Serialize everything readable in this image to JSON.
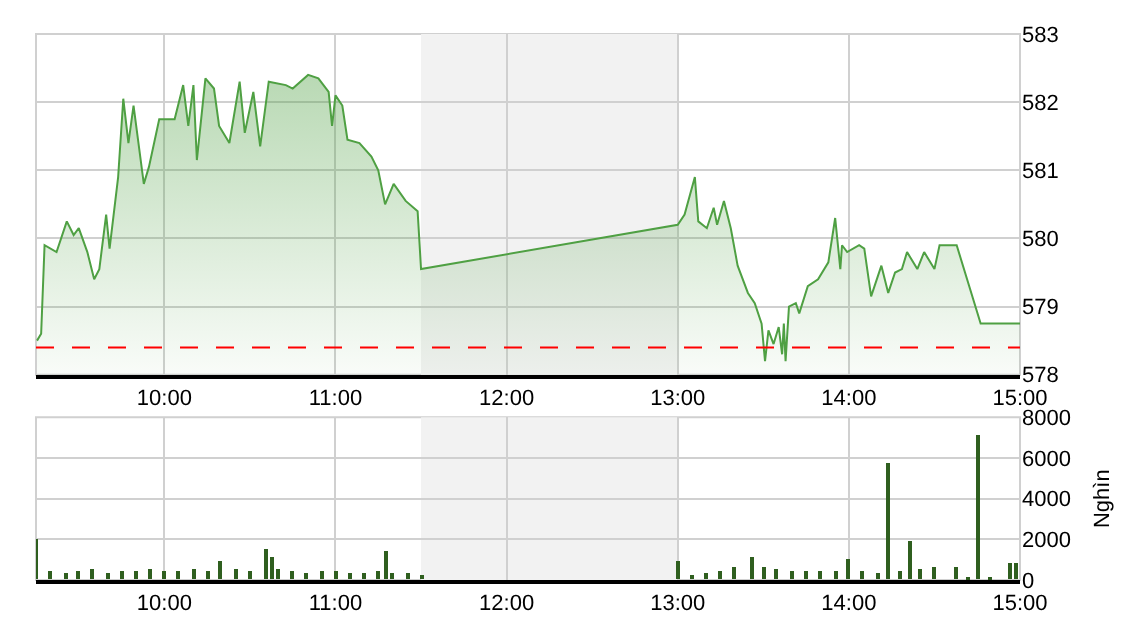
{
  "chart_data": [
    {
      "type": "area",
      "color": "#4fa043",
      "x": [
        9.256,
        9.28,
        9.3,
        9.37,
        9.43,
        9.47,
        9.5,
        9.55,
        9.59,
        9.62,
        9.66,
        9.68,
        9.73,
        9.76,
        9.79,
        9.82,
        9.88,
        9.91,
        9.97,
        10.06,
        10.11,
        10.14,
        10.17,
        10.19,
        10.24,
        10.29,
        10.32,
        10.38,
        10.44,
        10.47,
        10.52,
        10.56,
        10.61,
        10.71,
        10.75,
        10.84,
        10.9,
        10.96,
        10.98,
        11.0,
        11.04,
        11.07,
        11.14,
        11.21,
        11.25,
        11.29,
        11.34,
        11.41,
        11.48,
        11.5,
        13.0,
        13.04,
        13.1,
        13.12,
        13.17,
        13.21,
        13.23,
        13.27,
        13.31,
        13.35,
        13.41,
        13.45,
        13.49,
        13.51,
        13.53,
        13.56,
        13.59,
        13.61,
        13.62,
        13.63,
        13.65,
        13.69,
        13.71,
        13.76,
        13.82,
        13.88,
        13.92,
        13.95,
        13.96,
        13.99,
        14.06,
        14.09,
        14.13,
        14.19,
        14.23,
        14.27,
        14.31,
        14.34,
        14.4,
        14.44,
        14.5,
        14.53,
        14.63,
        14.77,
        15.0
      ],
      "values": [
        578.5,
        578.6,
        579.9,
        579.8,
        580.25,
        580.05,
        580.15,
        579.8,
        579.4,
        579.55,
        580.35,
        579.85,
        580.9,
        582.05,
        581.4,
        581.95,
        580.8,
        581.05,
        581.75,
        581.75,
        582.25,
        581.65,
        582.25,
        581.15,
        582.35,
        582.2,
        581.65,
        581.4,
        582.3,
        581.55,
        582.15,
        581.35,
        582.3,
        582.25,
        582.2,
        582.4,
        582.35,
        582.15,
        581.65,
        582.1,
        581.95,
        581.45,
        581.4,
        581.2,
        581.0,
        580.5,
        580.8,
        580.55,
        580.4,
        579.55,
        580.2,
        580.35,
        580.9,
        580.25,
        580.15,
        580.45,
        580.2,
        580.55,
        580.15,
        579.6,
        579.2,
        579.05,
        578.75,
        578.2,
        578.65,
        578.45,
        578.7,
        578.3,
        578.75,
        578.2,
        579.0,
        579.05,
        578.9,
        579.3,
        579.4,
        579.65,
        580.3,
        579.55,
        579.9,
        579.8,
        579.9,
        579.85,
        579.15,
        579.6,
        579.2,
        579.5,
        579.55,
        579.8,
        579.55,
        579.8,
        579.55,
        579.9,
        579.9,
        578.75,
        578.75
      ],
      "xlim": [
        9.25,
        15
      ],
      "ylim": [
        578,
        583
      ],
      "yticks": [
        578,
        579,
        580,
        581,
        582,
        583
      ],
      "xticks": [
        {
          "value": 10,
          "label": "10:00"
        },
        {
          "value": 11,
          "label": "11:00"
        },
        {
          "value": 12,
          "label": "12:00"
        },
        {
          "value": 13,
          "label": "13:00"
        },
        {
          "value": 14,
          "label": "14:00"
        },
        {
          "value": 15,
          "label": "15:00"
        }
      ],
      "ref_lines": [
        {
          "axis": "y",
          "value": 578.4,
          "color": "#ff0000",
          "line_style": "dashed"
        }
      ],
      "bands": [
        {
          "axis": "x",
          "from": 11.5,
          "to": 13,
          "color": "#f2f2f2"
        }
      ],
      "grid": true
    },
    {
      "type": "bar",
      "color": "#2f5f1f",
      "ylabel": "Nghìn",
      "x": [
        9.25,
        9.33,
        9.42,
        9.5,
        9.58,
        9.67,
        9.75,
        9.83,
        9.92,
        10.0,
        10.08,
        10.17,
        10.25,
        10.33,
        10.42,
        10.5,
        10.59,
        10.63,
        10.67,
        10.75,
        10.83,
        10.92,
        11.0,
        11.08,
        11.17,
        11.25,
        11.29,
        11.33,
        11.42,
        11.5,
        13.0,
        13.08,
        13.17,
        13.25,
        13.33,
        13.43,
        13.5,
        13.58,
        13.67,
        13.75,
        13.83,
        13.92,
        14.0,
        14.08,
        14.17,
        14.23,
        14.3,
        14.36,
        14.42,
        14.5,
        14.63,
        14.7,
        14.76,
        14.83,
        14.94,
        14.98
      ],
      "values": [
        2000,
        450,
        350,
        400,
        500,
        350,
        450,
        400,
        500,
        450,
        400,
        500,
        450,
        900,
        500,
        450,
        1500,
        1100,
        500,
        400,
        350,
        450,
        400,
        300,
        350,
        400,
        1400,
        350,
        300,
        200,
        900,
        250,
        350,
        450,
        600,
        1100,
        600,
        550,
        450,
        400,
        450,
        400,
        1000,
        400,
        350,
        5700,
        450,
        1900,
        550,
        600,
        600,
        150,
        7100,
        150,
        800,
        800
      ],
      "xlim": [
        9.25,
        15
      ],
      "ylim": [
        0,
        8000
      ],
      "yticks": [
        0,
        2000,
        4000,
        6000,
        8000
      ],
      "xticks": [
        {
          "value": 10,
          "label": "10:00"
        },
        {
          "value": 11,
          "label": "11:00"
        },
        {
          "value": 12,
          "label": "12:00"
        },
        {
          "value": 13,
          "label": "13:00"
        },
        {
          "value": 14,
          "label": "14:00"
        },
        {
          "value": 15,
          "label": "15:00"
        }
      ],
      "bands": [
        {
          "axis": "x",
          "from": 11.5,
          "to": 13,
          "color": "#f2f2f2"
        }
      ],
      "grid": true
    }
  ]
}
